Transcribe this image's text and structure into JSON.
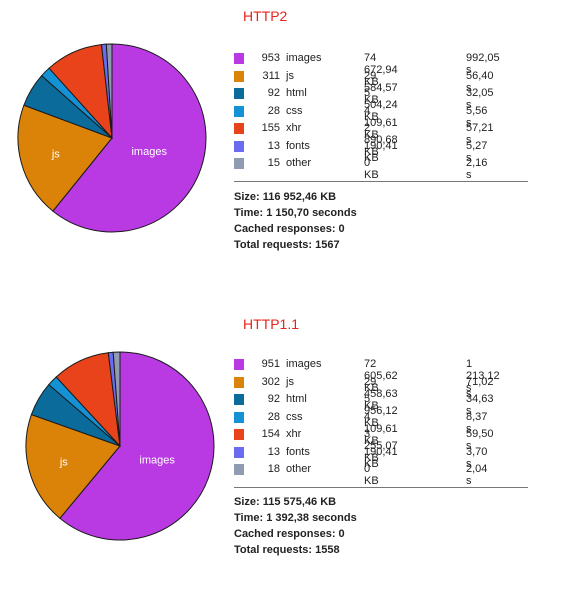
{
  "chart_data": [
    {
      "type": "pie",
      "title": "HTTP2",
      "categories": [
        "images",
        "js",
        "html",
        "css",
        "xhr",
        "fonts",
        "other"
      ],
      "values": [
        953,
        311,
        92,
        28,
        155,
        13,
        15
      ],
      "pie_labels": [
        "images",
        "js"
      ],
      "colors": [
        "#b93ae3",
        "#db8208",
        "#0b6b9a",
        "#1492d6",
        "#e8431a",
        "#6b6bf2",
        "#8f9bb0"
      ],
      "table": {
        "rows": [
          {
            "count": "953",
            "type": "images",
            "size": "74 672,94 KB",
            "time": "992,05 s"
          },
          {
            "count": "311",
            "type": "js",
            "size": "29 584,57 KB",
            "time": "56,40 s"
          },
          {
            "count": "92",
            "type": "html",
            "size": "5 504,24 KB",
            "time": "32,05 s"
          },
          {
            "count": "28",
            "type": "css",
            "size": "4 109,61 KB",
            "time": "5,56 s"
          },
          {
            "count": "155",
            "type": "xhr",
            "size": "2 890,68 KB",
            "time": "57,21 s"
          },
          {
            "count": "13",
            "type": "fonts",
            "size": "190,41 KB",
            "time": "5,27 s"
          },
          {
            "count": "15",
            "type": "other",
            "size": "0 KB",
            "time": "2,16 s"
          }
        ]
      },
      "summary": {
        "size": "Size: 116 952,46 KB",
        "time": "Time: 1 150,70 seconds",
        "cached": "Cached responses: 0",
        "total": "Total requests: 1567"
      }
    },
    {
      "type": "pie",
      "title": "HTTP1.1",
      "categories": [
        "images",
        "js",
        "html",
        "css",
        "xhr",
        "fonts",
        "other"
      ],
      "values": [
        951,
        302,
        92,
        28,
        154,
        13,
        18
      ],
      "pie_labels": [
        "images",
        "js"
      ],
      "colors": [
        "#b93ae3",
        "#db8208",
        "#0b6b9a",
        "#1492d6",
        "#e8431a",
        "#6b6bf2",
        "#8f9bb0"
      ],
      "table": {
        "rows": [
          {
            "count": "951",
            "type": "images",
            "size": "72 605,62 KB",
            "time": "1 213,12 s"
          },
          {
            "count": "302",
            "type": "js",
            "size": "29 458,63 KB",
            "time": "71,02 s"
          },
          {
            "count": "92",
            "type": "html",
            "size": "5 956,12 KB",
            "time": "34,63 s"
          },
          {
            "count": "28",
            "type": "css",
            "size": "4 109,61 KB",
            "time": "8,37 s"
          },
          {
            "count": "154",
            "type": "xhr",
            "size": "3 255,07 KB",
            "time": "59,50 s"
          },
          {
            "count": "13",
            "type": "fonts",
            "size": "190,41 KB",
            "time": "3,70 s"
          },
          {
            "count": "18",
            "type": "other",
            "size": "0 KB",
            "time": "2,04 s"
          }
        ]
      },
      "summary": {
        "size": "Size: 115 575,46 KB",
        "time": "Time: 1 392,38 seconds",
        "cached": "Cached responses: 0",
        "total": "Total requests: 1558"
      }
    }
  ]
}
